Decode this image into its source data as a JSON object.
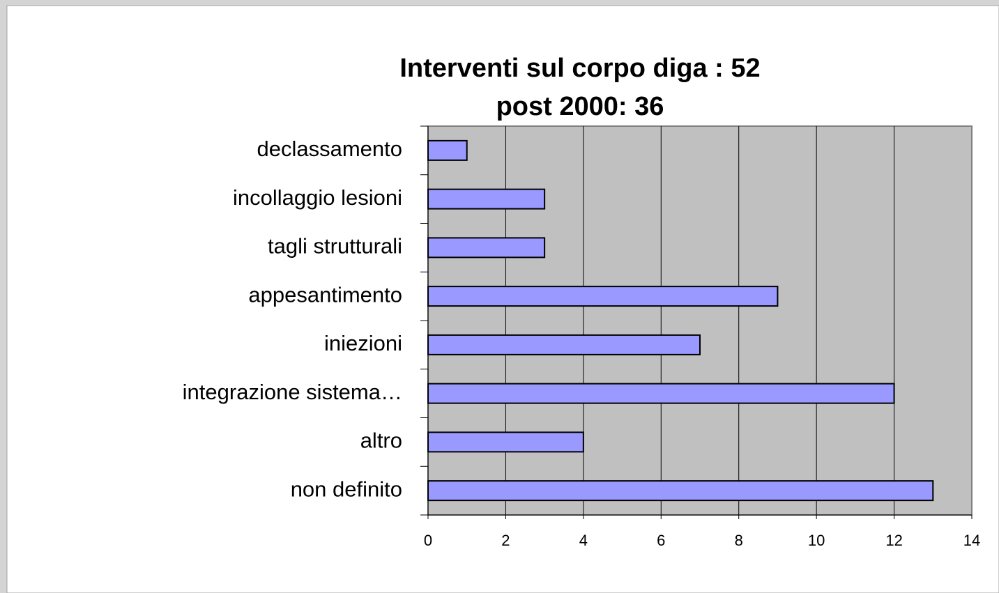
{
  "chart_data": {
    "type": "barh",
    "title": [
      "Interventi sul corpo diga : 52",
      "post 2000: 36"
    ],
    "categories": [
      "declassamento",
      "incollaggio lesioni",
      "tagli strutturali",
      "appesantimento",
      "iniezioni",
      "integrazione sistema…",
      "altro",
      "non definito"
    ],
    "values": [
      1,
      3,
      3,
      9,
      7,
      12,
      4,
      13
    ],
    "color": "#9999ff",
    "xlim": [
      0,
      14
    ],
    "xticks": [
      0,
      2,
      4,
      6,
      8,
      10,
      12,
      14
    ],
    "grid": true
  }
}
